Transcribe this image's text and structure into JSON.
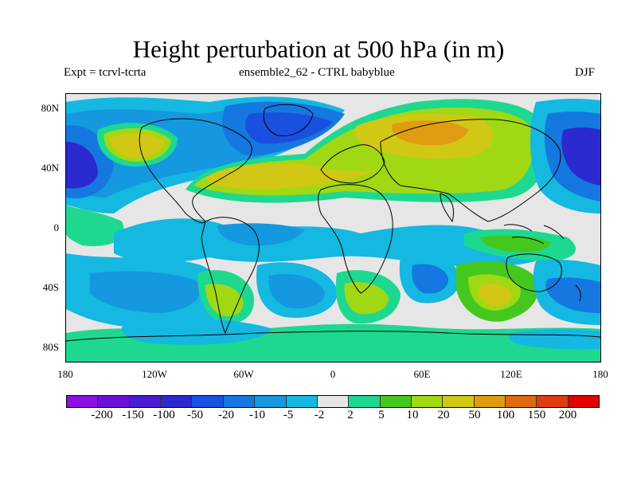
{
  "title": "Height perturbation at 500 hPa (in m)",
  "subtitle_left": "Expt = tcrvl-tcrta",
  "subtitle_center": "ensemble2_62 - CTRL babyblue",
  "subtitle_right": "DJF",
  "lat_ticks": [
    "80N",
    "40N",
    "0",
    "40S",
    "80S"
  ],
  "lon_ticks": [
    "180",
    "120W",
    "60W",
    "0",
    "60E",
    "120E",
    "180"
  ],
  "colorbar": {
    "colors": [
      "#8a10e0",
      "#6a10d8",
      "#4a1cd0",
      "#2a2ad0",
      "#1a50e0",
      "#1478e0",
      "#1498e0",
      "#14b8e0",
      "#e6e6e6",
      "#1ed890",
      "#44c81e",
      "#a0d814",
      "#d0c814",
      "#e09c10",
      "#e06a10",
      "#e03c14",
      "#e00000"
    ],
    "labels": [
      "-200",
      "-150",
      "-100",
      "-50",
      "-20",
      "-10",
      "-5",
      "-2",
      "2",
      "5",
      "10",
      "20",
      "50",
      "100",
      "150",
      "200"
    ]
  },
  "map_colors": {
    "missing": "#e6e6e6",
    "coast": "#000000"
  }
}
